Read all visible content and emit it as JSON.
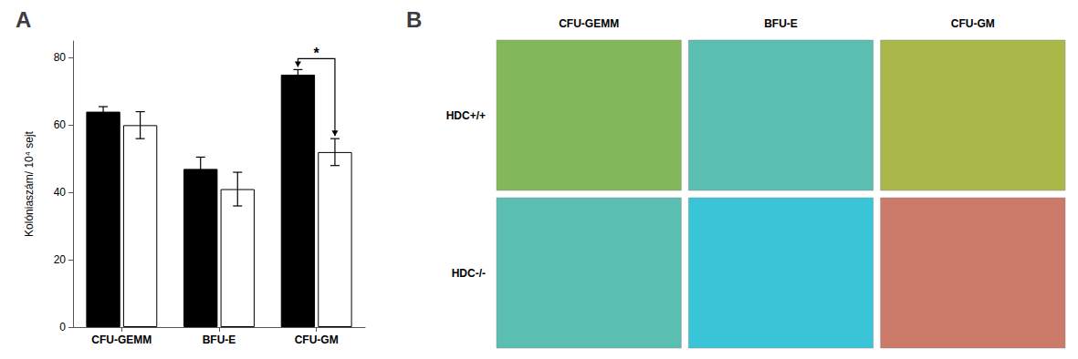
{
  "chart_data": [
    {
      "type": "bar",
      "title": "A",
      "categories": [
        "CFU-GEMM",
        "BFU-E",
        "CFU-GM"
      ],
      "series": [
        {
          "color": "black",
          "values": [
            64,
            47,
            75
          ],
          "errors": [
            1.5,
            3.5,
            1.5
          ]
        },
        {
          "color": "white",
          "values": [
            60,
            41,
            52
          ],
          "errors": [
            4.0,
            5.0,
            4.0
          ]
        }
      ],
      "ylabel": "Kolóniaszám/ 10⁴ sejt",
      "ylim": [
        0,
        85
      ],
      "yticks": [
        0,
        20,
        40,
        60,
        80
      ],
      "grid": false,
      "annotations": [
        {
          "text": "*",
          "category": "CFU-GM"
        }
      ]
    },
    {
      "type": "image_grid",
      "title": "B",
      "categories": [
        "CFU-GEMM",
        "BFU-E",
        "CFU-GM"
      ],
      "series": [
        {
          "name": "HDC+/+",
          "colors": [
            "#82b85a",
            "#5abfb0",
            "#aab84a"
          ]
        },
        {
          "name": "HDC-/-",
          "colors": [
            "#5abfb0",
            "#3ac4d8",
            "#cc7a6a"
          ]
        }
      ]
    }
  ]
}
